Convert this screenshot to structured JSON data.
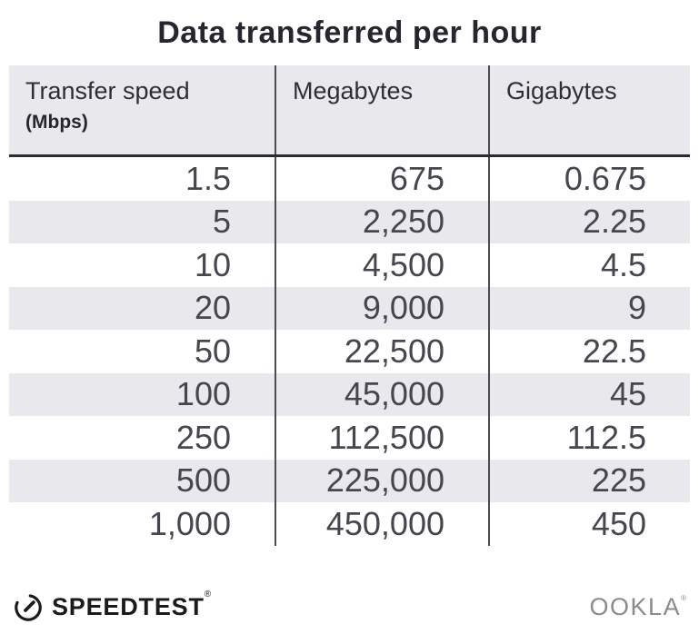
{
  "title": "Data transferred per hour",
  "chart_data": {
    "type": "table",
    "title": "Data transferred per hour",
    "columns": [
      {
        "label": "Transfer speed",
        "sublabel": "(Mbps)"
      },
      {
        "label": "Megabytes",
        "sublabel": ""
      },
      {
        "label": "Gigabytes",
        "sublabel": ""
      }
    ],
    "rows": [
      [
        "1.5",
        "675",
        "0.675"
      ],
      [
        "5",
        "2,250",
        "2.25"
      ],
      [
        "10",
        "4,500",
        "4.5"
      ],
      [
        "20",
        "9,000",
        "9"
      ],
      [
        "50",
        "22,500",
        "22.5"
      ],
      [
        "100",
        "45,000",
        "45"
      ],
      [
        "250",
        "112,500",
        "112.5"
      ],
      [
        "500",
        "225,000",
        "225"
      ],
      [
        "1,000",
        "450,000",
        "450"
      ]
    ],
    "layout": {
      "stripe_rows": "even rows shaded",
      "stripe_color": "#e9e8ed",
      "header_background": "#e9e8ed",
      "divider_color": "#4b4b52",
      "header_underline_color": "#2a2a30",
      "cell_alignment": "right"
    }
  },
  "footer": {
    "speedtest_label": "SPEEDTEST",
    "speedtest_registered": "®",
    "ookla_label": "OOKLA",
    "ookla_registered": "®",
    "speedtest_color": "#1b1b1b",
    "ookla_color": "#8b8b8b"
  }
}
